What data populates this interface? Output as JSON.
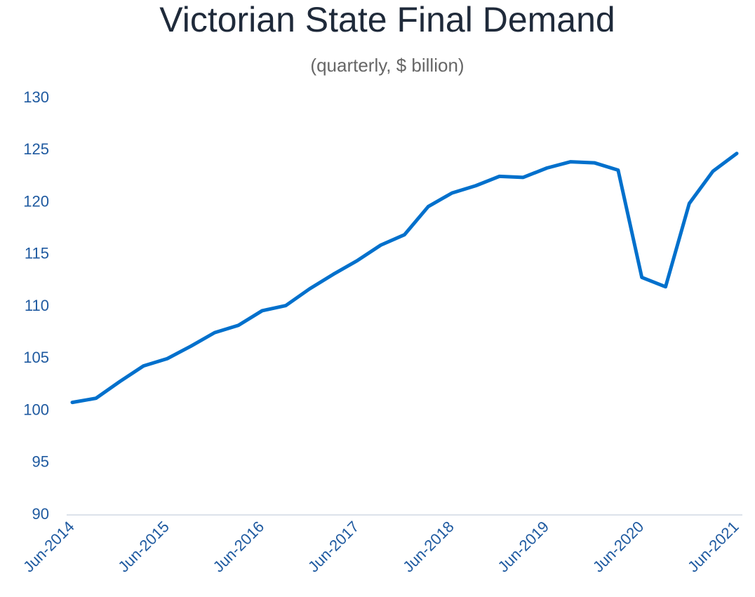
{
  "chart_data": {
    "type": "line",
    "title": "Victorian State Final Demand",
    "subtitle": "(quarterly, $ billion)",
    "categories": [
      "Jun-2014",
      null,
      null,
      null,
      "Jun-2015",
      null,
      null,
      null,
      "Jun-2016",
      null,
      null,
      null,
      "Jun-2017",
      null,
      null,
      null,
      "Jun-2018",
      null,
      null,
      null,
      "Jun-2019",
      null,
      null,
      null,
      "Jun-2020",
      null,
      null,
      null,
      "Jun-2021"
    ],
    "series": [
      {
        "name": "Victorian State Final Demand",
        "color": "#0070cc",
        "values": [
          100.8,
          101.2,
          102.8,
          104.3,
          105.0,
          106.2,
          107.5,
          108.2,
          109.6,
          110.1,
          111.7,
          113.1,
          114.4,
          115.9,
          116.9,
          119.6,
          120.9,
          121.6,
          122.5,
          122.4,
          123.3,
          123.9,
          123.8,
          123.1,
          112.8,
          111.9,
          119.9,
          123.0,
          124.7
        ]
      }
    ],
    "ylim": [
      90,
      130
    ],
    "yticks": [
      90,
      95,
      100,
      105,
      110,
      115,
      120,
      125,
      130
    ],
    "grid": false
  }
}
